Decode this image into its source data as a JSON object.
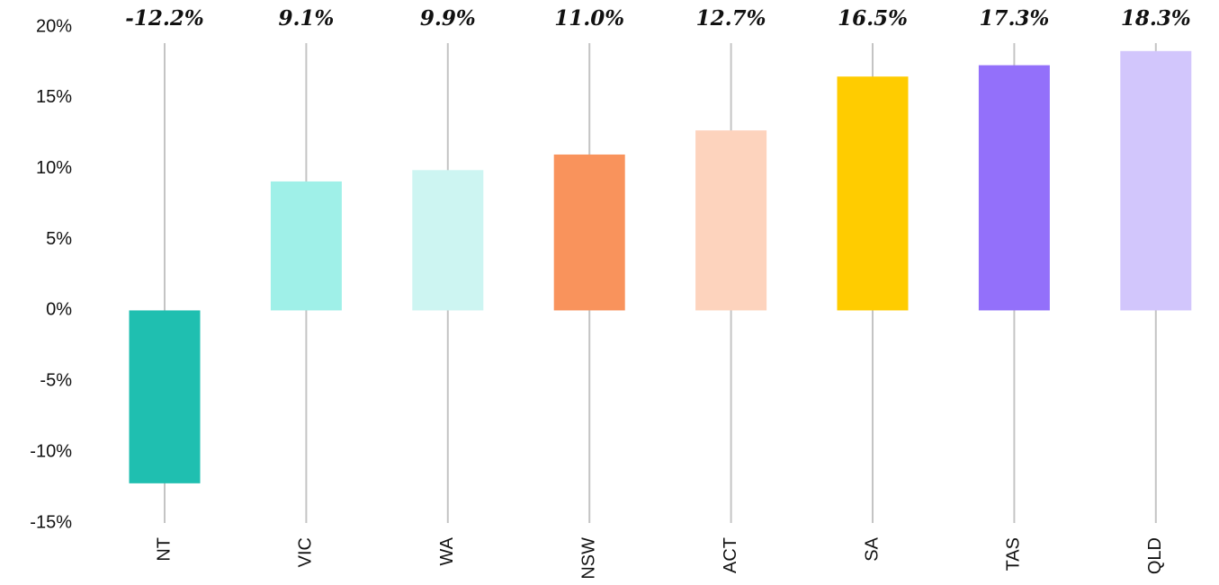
{
  "chart_data": {
    "type": "bar",
    "categories": [
      "NT",
      "VIC",
      "WA",
      "NSW",
      "ACT",
      "SA",
      "TAS",
      "QLD"
    ],
    "values": [
      -12.2,
      9.1,
      9.9,
      11.0,
      12.7,
      16.5,
      17.3,
      18.3
    ],
    "value_labels": [
      "-12.2%",
      "9.1%",
      "9.9%",
      "11.0%",
      "12.7%",
      "16.5%",
      "17.3%",
      "18.3%"
    ],
    "colors": [
      "#1fbfb0",
      "#9ff0e8",
      "#cdf5f2",
      "#f9935c",
      "#fdd3bd",
      "#ffcc00",
      "#9370fa",
      "#d2c6fc"
    ],
    "ylim": [
      -15,
      20
    ],
    "yticks": [
      {
        "value": -15,
        "label": "-15%"
      },
      {
        "value": -10,
        "label": "-10%"
      },
      {
        "value": -5,
        "label": "-5%"
      },
      {
        "value": 0,
        "label": "0%"
      },
      {
        "value": 5,
        "label": "5%"
      },
      {
        "value": 10,
        "label": "10%"
      },
      {
        "value": 15,
        "label": "15%"
      },
      {
        "value": 20,
        "label": "20%"
      }
    ],
    "grid": false
  }
}
